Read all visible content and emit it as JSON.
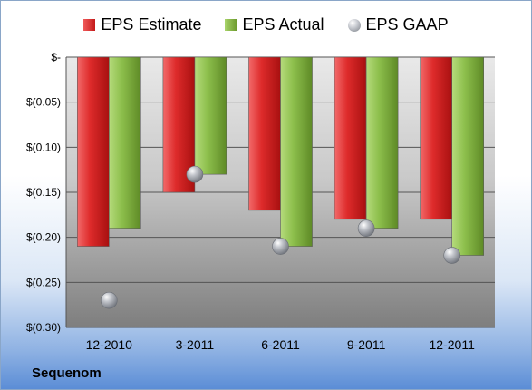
{
  "company": "Sequenom",
  "chart_data": {
    "type": "bar",
    "categories": [
      "12-2010",
      "3-2011",
      "6-2011",
      "9-2011",
      "12-2011"
    ],
    "series": [
      {
        "name": "EPS Estimate",
        "values": [
          -0.21,
          -0.15,
          -0.17,
          -0.18,
          -0.18
        ],
        "color": "#d42424"
      },
      {
        "name": "EPS Actual",
        "values": [
          -0.19,
          -0.13,
          -0.21,
          -0.19,
          -0.22
        ],
        "color": "#8bbd4a"
      }
    ],
    "scatter_series": {
      "name": "EPS GAAP",
      "values": [
        -0.27,
        -0.13,
        -0.21,
        -0.19,
        -0.22
      ],
      "color": "#a0a4aa"
    },
    "ylim": [
      -0.3,
      0
    ],
    "yticks": [
      0,
      -0.05,
      -0.1,
      -0.15,
      -0.2,
      -0.25,
      -0.3
    ],
    "ytick_labels": [
      "$-",
      "$(0.05)",
      "$(0.10)",
      "$(0.15)",
      "$(0.20)",
      "$(0.25)",
      "$(0.30)"
    ],
    "legend_position": "top",
    "grid": true
  }
}
